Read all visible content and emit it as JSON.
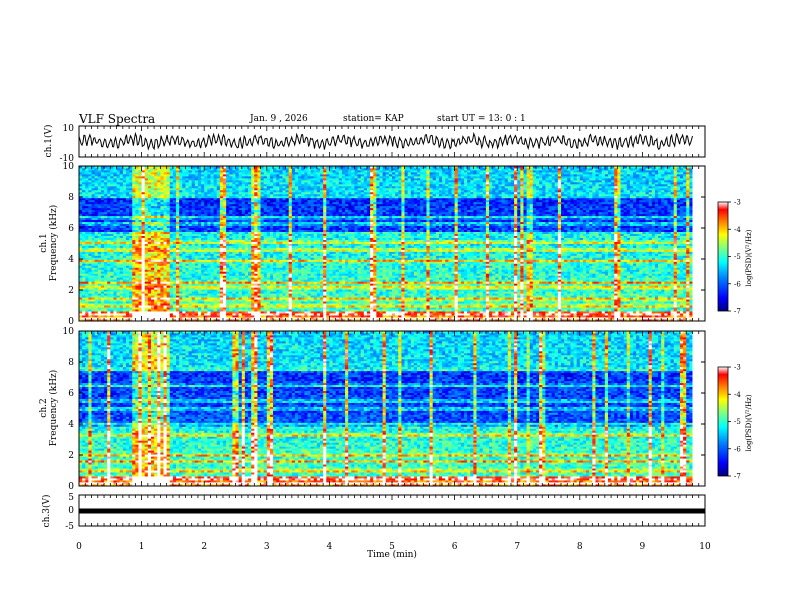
{
  "header": {
    "title": "VLF Spectra",
    "date": "Jan. 9 , 2026",
    "station": "station= KAP",
    "start": "start UT = 13: 0 : 1"
  },
  "chart_data": [
    {
      "type": "line",
      "name": "ch1-waveform",
      "ylabel": "ch.1(V)",
      "ylim": [
        -10,
        10
      ],
      "yticks": [
        "10",
        "-10"
      ],
      "xlim": [
        0,
        10
      ],
      "trace": "noisy waveform fluctuating roughly between -5 and 5 V over 0 to 9.8 min"
    },
    {
      "type": "heatmap",
      "name": "ch1-spectrogram",
      "ylabel": "ch.1\nFrequency (kHz)",
      "ylim": [
        0,
        10
      ],
      "yticks": [
        "0",
        "2",
        "4",
        "6",
        "8",
        "10"
      ],
      "xlim": [
        0,
        9.8
      ],
      "colorbar": {
        "label": "log(PSD)(V²/Hz)",
        "range": [
          -7,
          -3
        ],
        "ticks": [
          "-3",
          "-4",
          "-5",
          "-6",
          "-7"
        ]
      },
      "features": {
        "strong_noise_window_min": [
          0.85,
          1.45
        ],
        "low_power_band_khz": [
          5.8,
          7.9
        ],
        "persistent_lines_khz": [
          0.2,
          0.5,
          1.0,
          1.45,
          2.2,
          2.5,
          3.9,
          4.6,
          5.1,
          6.3,
          6.7
        ]
      }
    },
    {
      "type": "heatmap",
      "name": "ch2-spectrogram",
      "ylabel": "ch.2\nFrequency (kHz)",
      "ylim": [
        0,
        10
      ],
      "yticks": [
        "0",
        "2",
        "4",
        "6",
        "8",
        "10"
      ],
      "xlim": [
        0,
        9.8
      ],
      "colorbar": {
        "label": "log(PSD)(V²/Hz)",
        "range": [
          -7,
          -3
        ],
        "ticks": [
          "-3",
          "-4",
          "-5",
          "-6",
          "-7"
        ]
      },
      "features": {
        "strong_noise_window_min": [
          0.85,
          1.45
        ],
        "low_power_band_khz": [
          3.9,
          7.5
        ],
        "persistent_lines_khz": [
          0.2,
          0.5,
          1.0,
          1.6,
          2.0,
          3.3,
          4.0,
          5.0,
          5.5,
          6.5,
          7.5
        ]
      }
    },
    {
      "type": "line",
      "name": "ch3-signal",
      "ylabel": "ch.3(V)",
      "ylim": [
        -5,
        5
      ],
      "yticks": [
        "5",
        "0",
        "-5"
      ],
      "xlim": [
        0,
        10
      ],
      "value_volts": 0,
      "trace": "flat thick line at 0 V from 0 to 10 min"
    }
  ],
  "xaxis": {
    "label": "Time (min)",
    "ticks": [
      "0",
      "1",
      "2",
      "3",
      "4",
      "5",
      "6",
      "7",
      "8",
      "9",
      "10"
    ],
    "range": [
      0,
      10
    ]
  },
  "colors": {
    "colormap": [
      "#00007f",
      "#0000ff",
      "#007fff",
      "#00ffff",
      "#7fff7f",
      "#ffff00",
      "#ff7f00",
      "#ff0000",
      "#ffffff"
    ]
  }
}
